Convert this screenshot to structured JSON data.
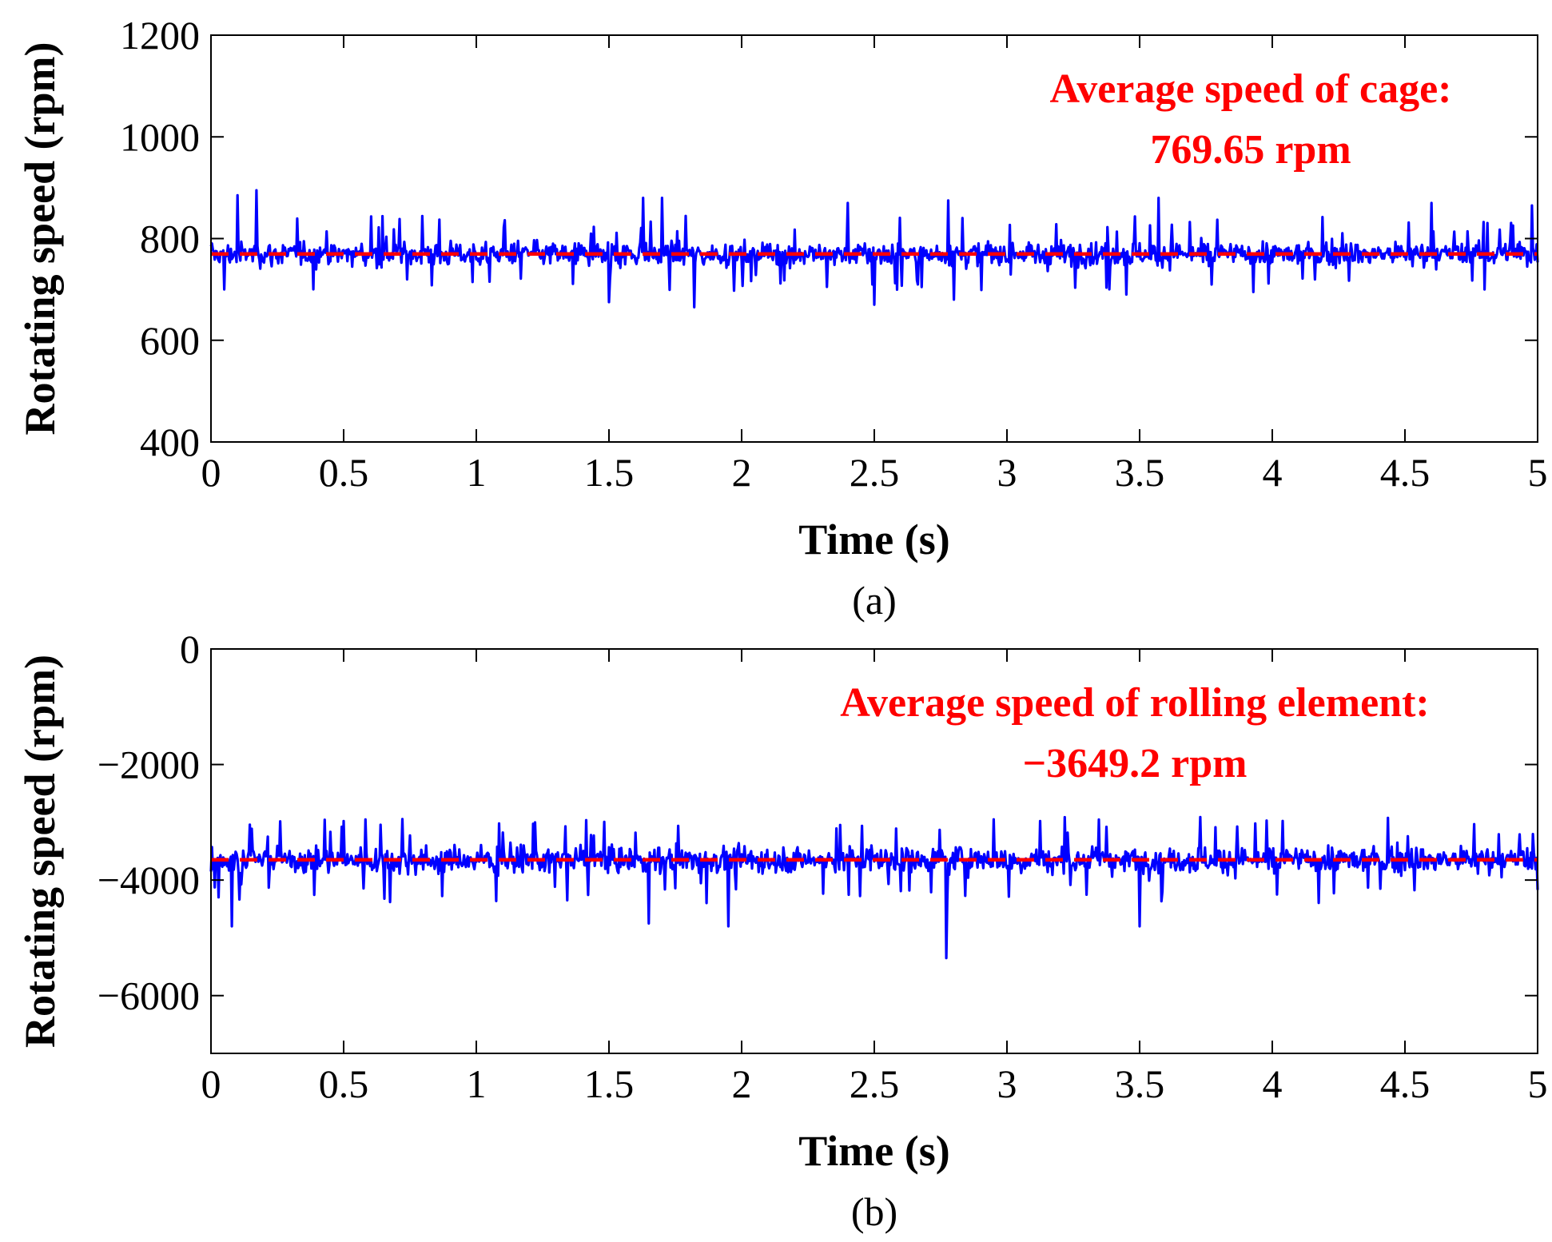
{
  "chart_data": [
    {
      "type": "line",
      "panel_label": "(a)",
      "xlabel": "Time (s)",
      "ylabel": "Rotating speed (rpm)",
      "xlim": [
        0,
        5
      ],
      "ylim": [
        400,
        1200
      ],
      "xticks": [
        0,
        0.5,
        1,
        1.5,
        2,
        2.5,
        3,
        3.5,
        4,
        4.5,
        5
      ],
      "xtick_labels": [
        "0",
        "0.5",
        "1",
        "1.5",
        "2",
        "2.5",
        "3",
        "3.5",
        "4",
        "4.5",
        "5"
      ],
      "yticks": [
        400,
        600,
        800,
        1000,
        1200
      ],
      "ytick_labels": [
        "400",
        "600",
        "800",
        "1000",
        "1200"
      ],
      "series": [
        {
          "name": "Cage speed",
          "color": "#0000ff",
          "mean": 769.65,
          "typical_range": [
            730,
            830
          ],
          "peak_range": [
            665,
            895
          ],
          "peaks": [
            [
              0.05,
              880
            ],
            [
              0.1,
              885
            ],
            [
              0.17,
              895
            ],
            [
              1.63,
              880
            ],
            [
              1.7,
              880
            ],
            [
              2.4,
              870
            ],
            [
              2.78,
              875
            ],
            [
              3.57,
              880
            ],
            [
              4.6,
              870
            ],
            [
              4.98,
              865
            ]
          ],
          "troughs": [
            [
              0.05,
              700
            ],
            [
              1.5,
              675
            ],
            [
              1.82,
              665
            ],
            [
              2.5,
              670
            ],
            [
              2.8,
              680
            ],
            [
              3.45,
              690
            ],
            [
              4.8,
              700
            ]
          ]
        },
        {
          "name": "Average speed of cage",
          "color": "#ff0000",
          "style": "dashed",
          "constant": 769.65
        }
      ],
      "annotations": [
        "Average speed of cage:",
        "769.65 rpm"
      ],
      "annotation_color": "#ff0000"
    },
    {
      "type": "line",
      "panel_label": "(b)",
      "xlabel": "Time (s)",
      "ylabel": "Rotating speed (rpm)",
      "xlim": [
        0,
        5
      ],
      "ylim": [
        -7000,
        0
      ],
      "xticks": [
        0,
        0.5,
        1,
        1.5,
        2,
        2.5,
        3,
        3.5,
        4,
        4.5,
        5
      ],
      "xtick_labels": [
        "0",
        "0.5",
        "1",
        "1.5",
        "2",
        "2.5",
        "3",
        "3.5",
        "4",
        "4.5",
        "5"
      ],
      "yticks": [
        -6000,
        -4000,
        -2000,
        0
      ],
      "ytick_labels": [
        "−6000",
        "−4000",
        "−2000",
        "0"
      ],
      "series": [
        {
          "name": "Rolling element speed",
          "color": "#0000ff",
          "mean": -3649.2,
          "typical_range": [
            -4200,
            -3200
          ],
          "peak_range": [
            -5400,
            -2950
          ],
          "peaks": [
            [
              0.5,
              -2980
            ],
            [
              1.95,
              -2970
            ],
            [
              2.95,
              -2950
            ],
            [
              3.98,
              -2970
            ]
          ],
          "troughs": [
            [
              0.08,
              -4800
            ],
            [
              1.65,
              -4750
            ],
            [
              1.95,
              -4800
            ],
            [
              2.77,
              -5350
            ],
            [
              3.5,
              -4800
            ]
          ]
        },
        {
          "name": "Average speed of rolling element",
          "color": "#ff0000",
          "style": "dashed",
          "constant": -3649.2
        }
      ],
      "annotations": [
        "Average speed of rolling element:",
        "−3649.2 rpm"
      ],
      "annotation_color": "#ff0000"
    }
  ]
}
